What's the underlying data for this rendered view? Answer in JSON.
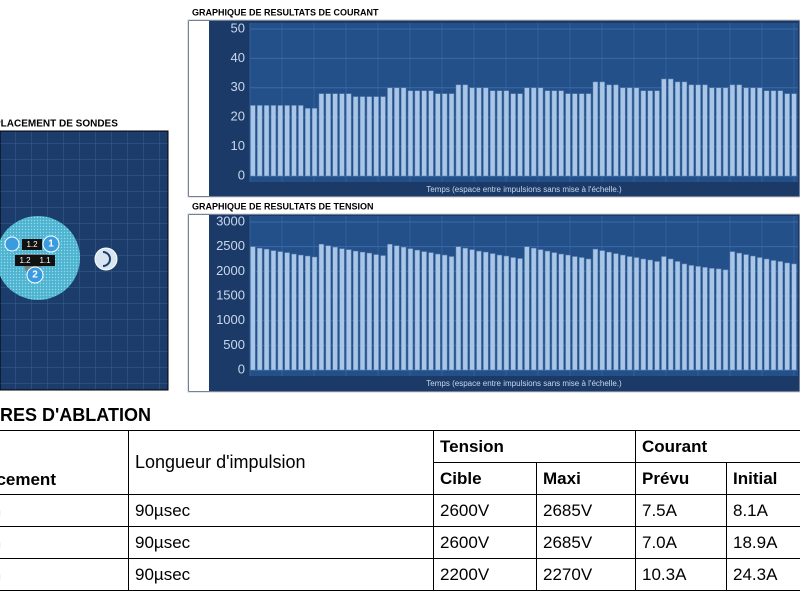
{
  "chart_data": [
    {
      "type": "bar",
      "title": "GRAPHIQUE DE RESULTATS DE COURANT",
      "x_label": "Temps (espace entre impulsions sans mise à l'échelle.)",
      "ylim": [
        0,
        50
      ],
      "yticks": [
        0,
        10,
        20,
        30,
        40,
        50
      ],
      "grid": true,
      "color": "#a9c6e6",
      "values": [
        24,
        24,
        24,
        24,
        24,
        24,
        24,
        24,
        23,
        23,
        28,
        28,
        28,
        28,
        28,
        27,
        27,
        27,
        27,
        27,
        30,
        30,
        30,
        29,
        29,
        29,
        29,
        28,
        28,
        28,
        31,
        31,
        30,
        30,
        30,
        29,
        29,
        29,
        28,
        28,
        30,
        30,
        30,
        29,
        29,
        29,
        28,
        28,
        28,
        28,
        32,
        32,
        31,
        31,
        30,
        30,
        30,
        29,
        29,
        29,
        33,
        33,
        32,
        32,
        31,
        31,
        31,
        30,
        30,
        30,
        31,
        31,
        30,
        30,
        30,
        29,
        29,
        29,
        28,
        28
      ]
    },
    {
      "type": "bar",
      "title": "GRAPHIQUE DE RESULTATS DE TENSION",
      "x_label": "Temps (espace entre impulsions sans mise à l'échelle.)",
      "ylim": [
        0,
        3000
      ],
      "yticks": [
        0,
        500,
        1000,
        1500,
        2000,
        2500,
        3000
      ],
      "grid": true,
      "color": "#a9c6e6",
      "values": [
        2500,
        2470,
        2450,
        2420,
        2400,
        2380,
        2350,
        2330,
        2310,
        2290,
        2550,
        2520,
        2490,
        2460,
        2440,
        2410,
        2390,
        2370,
        2340,
        2320,
        2550,
        2520,
        2490,
        2460,
        2430,
        2400,
        2380,
        2350,
        2330,
        2300,
        2500,
        2470,
        2440,
        2410,
        2390,
        2360,
        2330,
        2310,
        2280,
        2260,
        2500,
        2470,
        2440,
        2410,
        2380,
        2350,
        2330,
        2300,
        2280,
        2250,
        2450,
        2420,
        2390,
        2360,
        2330,
        2300,
        2280,
        2250,
        2230,
        2200,
        2300,
        2250,
        2200,
        2150,
        2120,
        2100,
        2080,
        2060,
        2050,
        2030,
        2400,
        2370,
        2340,
        2310,
        2280,
        2250,
        2220,
        2200,
        2170,
        2150
      ]
    }
  ],
  "probe_panel": {
    "title": "PLACEMENT DE SONDES",
    "probes": [
      "1",
      "2"
    ],
    "distances": [
      "1.2",
      "1.2",
      "1.1"
    ]
  },
  "ablation": {
    "title": "RES D'ABLATION",
    "header": [
      "acement",
      "Longueur d'impulsion",
      "Tension",
      "Courant"
    ],
    "subheader": [
      "Cible",
      "Maxi",
      "Prévu",
      "Initial"
    ],
    "rows": [
      [
        "m",
        "90µsec",
        "2600V",
        "2685V",
        "7.5A",
        "8.1A"
      ],
      [
        "m",
        "90µsec",
        "2600V",
        "2685V",
        "7.0A",
        "18.9A"
      ],
      [
        "m",
        "90µsec",
        "2200V",
        "2270V",
        "10.3A",
        "24.3A"
      ]
    ]
  }
}
